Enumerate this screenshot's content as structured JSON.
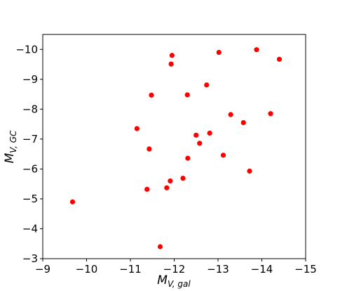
{
  "chart_data": {
    "type": "scatter",
    "xlabel": {
      "main": "M",
      "sub": "V, gal"
    },
    "ylabel": {
      "main": "M",
      "sub": "V, GC"
    },
    "xlim": [
      -9,
      -15
    ],
    "ylim": [
      -3,
      -10.5
    ],
    "x_ticks": [
      -9,
      -10,
      -11,
      -12,
      -13,
      -14,
      -15
    ],
    "y_ticks": [
      -3,
      -4,
      -5,
      -6,
      -7,
      -8,
      -9,
      -10
    ],
    "x_tick_labels": [
      "−9",
      "−10",
      "−11",
      "−12",
      "−13",
      "−14",
      "−15"
    ],
    "y_tick_labels": [
      "−3",
      "−4",
      "−5",
      "−6",
      "−7",
      "−8",
      "−9",
      "−10"
    ],
    "grid": false,
    "marker_color": "#ff0000",
    "series": [
      {
        "points": [
          {
            "x": -9.68,
            "y": -4.9
          },
          {
            "x": -11.15,
            "y": -7.35
          },
          {
            "x": -11.38,
            "y": -5.32
          },
          {
            "x": -11.43,
            "y": -6.67
          },
          {
            "x": -11.48,
            "y": -8.47
          },
          {
            "x": -11.68,
            "y": -3.4
          },
          {
            "x": -11.83,
            "y": -5.37
          },
          {
            "x": -11.91,
            "y": -5.6
          },
          {
            "x": -11.93,
            "y": -9.51
          },
          {
            "x": -11.95,
            "y": -9.8
          },
          {
            "x": -12.2,
            "y": -5.69
          },
          {
            "x": -12.3,
            "y": -8.48
          },
          {
            "x": -12.31,
            "y": -6.36
          },
          {
            "x": -12.5,
            "y": -7.13
          },
          {
            "x": -12.58,
            "y": -6.86
          },
          {
            "x": -12.74,
            "y": -8.81
          },
          {
            "x": -12.81,
            "y": -7.2
          },
          {
            "x": -13.02,
            "y": -9.9
          },
          {
            "x": -13.12,
            "y": -6.46
          },
          {
            "x": -13.29,
            "y": -7.82
          },
          {
            "x": -13.58,
            "y": -7.55
          },
          {
            "x": -13.72,
            "y": -5.93
          },
          {
            "x": -13.88,
            "y": -9.99
          },
          {
            "x": -14.2,
            "y": -7.85
          },
          {
            "x": -14.4,
            "y": -9.67
          }
        ]
      }
    ]
  }
}
